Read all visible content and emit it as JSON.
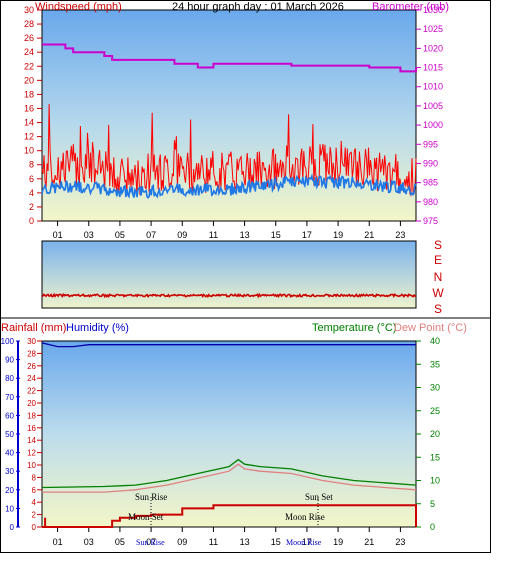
{
  "header": {
    "wind_label": "Windspeed (mph)",
    "title": "24 hour graph day : 01 March 2026",
    "baro_label": "Barometer (mb)"
  },
  "direction_labels": [
    "S",
    "E",
    "N",
    "W",
    "S"
  ],
  "bottom_header": {
    "rain_label": "Rainfall (mm)",
    "humidity_label": "Humidity (%)",
    "temp_label": "Temperature (°C)",
    "dew_label": "Dew Point (°C)"
  },
  "colors": {
    "wind_axis": "#cc0000",
    "baro": "#cc00cc",
    "wind_speed": "#ff0000",
    "wind_avg": "#1e78e6",
    "direction": "#cc0000",
    "temperature": "#008000",
    "dew_point": "#e08080",
    "humidity": "#0000aa",
    "rain": "#cc0000",
    "humidity_axis": "#0000cc",
    "rain_axis": "#cc0000",
    "temp_axis": "#008000"
  },
  "annotations": {
    "sun_rise": "Sun Rise",
    "sun_set": "Sun Set",
    "moon_set": "Moon Set",
    "moon_rise": "Moon Rise"
  },
  "chart_data": [
    {
      "type": "line",
      "title": "24 hour graph day : 01 March 2026",
      "xlabel": "",
      "x_ticks": [
        "01",
        "03",
        "05",
        "07",
        "09",
        "11",
        "13",
        "15",
        "17",
        "19",
        "21",
        "23"
      ],
      "xlim": [
        0,
        24
      ],
      "ylabel": "Windspeed (mph)",
      "ylim": [
        0,
        30
      ],
      "y_ticks": [
        0,
        2,
        4,
        6,
        8,
        10,
        12,
        14,
        16,
        18,
        20,
        22,
        24,
        26,
        28,
        30
      ],
      "y2label": "Barometer (mb)",
      "y2lim": [
        975,
        1030
      ],
      "y2_ticks": [
        975,
        980,
        985,
        990,
        995,
        1000,
        1005,
        1010,
        1015,
        1020,
        1025,
        1030
      ],
      "series": [
        {
          "name": "Windspeed (mph)",
          "axis": "y",
          "x": [
            0,
            2,
            4,
            6,
            8,
            10,
            12,
            14,
            16,
            18,
            20,
            22,
            24
          ],
          "values": [
            7,
            8,
            7,
            6,
            7,
            7,
            7,
            7,
            8,
            8,
            8,
            7,
            6
          ]
        },
        {
          "name": "Average",
          "axis": "y",
          "x": [
            0,
            2,
            4,
            6,
            8,
            10,
            12,
            14,
            16,
            18,
            20,
            22,
            24
          ],
          "values": [
            4.5,
            5,
            4.5,
            4,
            4.5,
            4.5,
            4.5,
            5,
            5.5,
            5.5,
            5.5,
            5,
            4.5
          ]
        },
        {
          "name": "Barometer (mb)",
          "axis": "y2",
          "x": [
            0,
            1.5,
            2,
            3,
            4,
            4.5,
            6,
            8.5,
            10,
            11,
            12,
            13,
            14,
            16,
            18,
            20,
            21,
            21.5,
            23,
            23.5,
            24
          ],
          "values": [
            1021,
            1020,
            1019,
            1019,
            1018,
            1017,
            1017,
            1016,
            1015,
            1016,
            1016,
            1016,
            1016,
            1015.5,
            1015.5,
            1015.5,
            1015,
            1015,
            1014,
            1014,
            1015
          ]
        }
      ]
    },
    {
      "type": "line",
      "title": "",
      "y_ticks": [
        "S",
        "E",
        "N",
        "W",
        "S"
      ],
      "series": [
        {
          "name": "Wind direction",
          "x": [
            0,
            4,
            8,
            12,
            16,
            20,
            24
          ],
          "values": [
            180,
            180,
            180,
            180,
            180,
            180,
            180
          ]
        }
      ]
    },
    {
      "type": "line",
      "title": "",
      "x_ticks": [
        "01",
        "03",
        "05",
        "07",
        "09",
        "11",
        "13",
        "15",
        "17",
        "19",
        "21",
        "23"
      ],
      "xlim": [
        0,
        24
      ],
      "rain_ylabel": "Rainfall (mm)",
      "rain_ylim": [
        0,
        30
      ],
      "rain_ticks": [
        0,
        2,
        4,
        6,
        8,
        10,
        12,
        14,
        16,
        18,
        20,
        22,
        24,
        26,
        28,
        30
      ],
      "humidity_ylabel": "Humidity (%)",
      "humidity_ylim": [
        0,
        100
      ],
      "humidity_ticks": [
        0,
        10,
        20,
        30,
        40,
        50,
        60,
        70,
        80,
        90,
        100
      ],
      "temp_ylabel": "Temperature (°C)",
      "temp_ylim": [
        0,
        40
      ],
      "temp_ticks": [
        0,
        5,
        10,
        15,
        20,
        25,
        30,
        35,
        40
      ],
      "series": [
        {
          "name": "Humidity (%)",
          "axis": "humidity",
          "x": [
            0,
            0.5,
            1,
            2,
            3,
            24
          ],
          "values": [
            99,
            98,
            97,
            97,
            98,
            98
          ]
        },
        {
          "name": "Temperature (°C)",
          "axis": "temp",
          "x": [
            0,
            2,
            4,
            6,
            8,
            10,
            12,
            12.6,
            13,
            14,
            16,
            18,
            20,
            22,
            24
          ],
          "values": [
            8.5,
            8.6,
            8.7,
            9,
            10,
            11.5,
            13,
            14.5,
            13.5,
            13,
            12.5,
            11,
            10,
            9.5,
            9
          ]
        },
        {
          "name": "Dew Point (°C)",
          "axis": "temp",
          "x": [
            0,
            2,
            4,
            6,
            8,
            10,
            12,
            12.6,
            13,
            14,
            16,
            18,
            20,
            22,
            24
          ],
          "values": [
            7.5,
            7.5,
            7.5,
            8,
            9,
            10.5,
            12,
            13.5,
            12.5,
            12,
            11.5,
            10,
            9,
            8.5,
            8
          ]
        },
        {
          "name": "Rainfall (mm)",
          "axis": "rain",
          "x": [
            0,
            3,
            4.5,
            5,
            6,
            7,
            8,
            9,
            11,
            12,
            20,
            24
          ],
          "values": [
            0,
            0,
            1,
            1.5,
            1.8,
            2,
            2,
            3,
            3.5,
            3.5,
            3.5,
            3.5
          ]
        }
      ],
      "events": [
        {
          "name": "Sun Rise",
          "x": 6.5
        },
        {
          "name": "Sun Set",
          "x": 17.5
        },
        {
          "name": "Moon Set",
          "x": 6.7
        },
        {
          "name": "Moon Rise",
          "x": 17.3
        }
      ]
    }
  ]
}
